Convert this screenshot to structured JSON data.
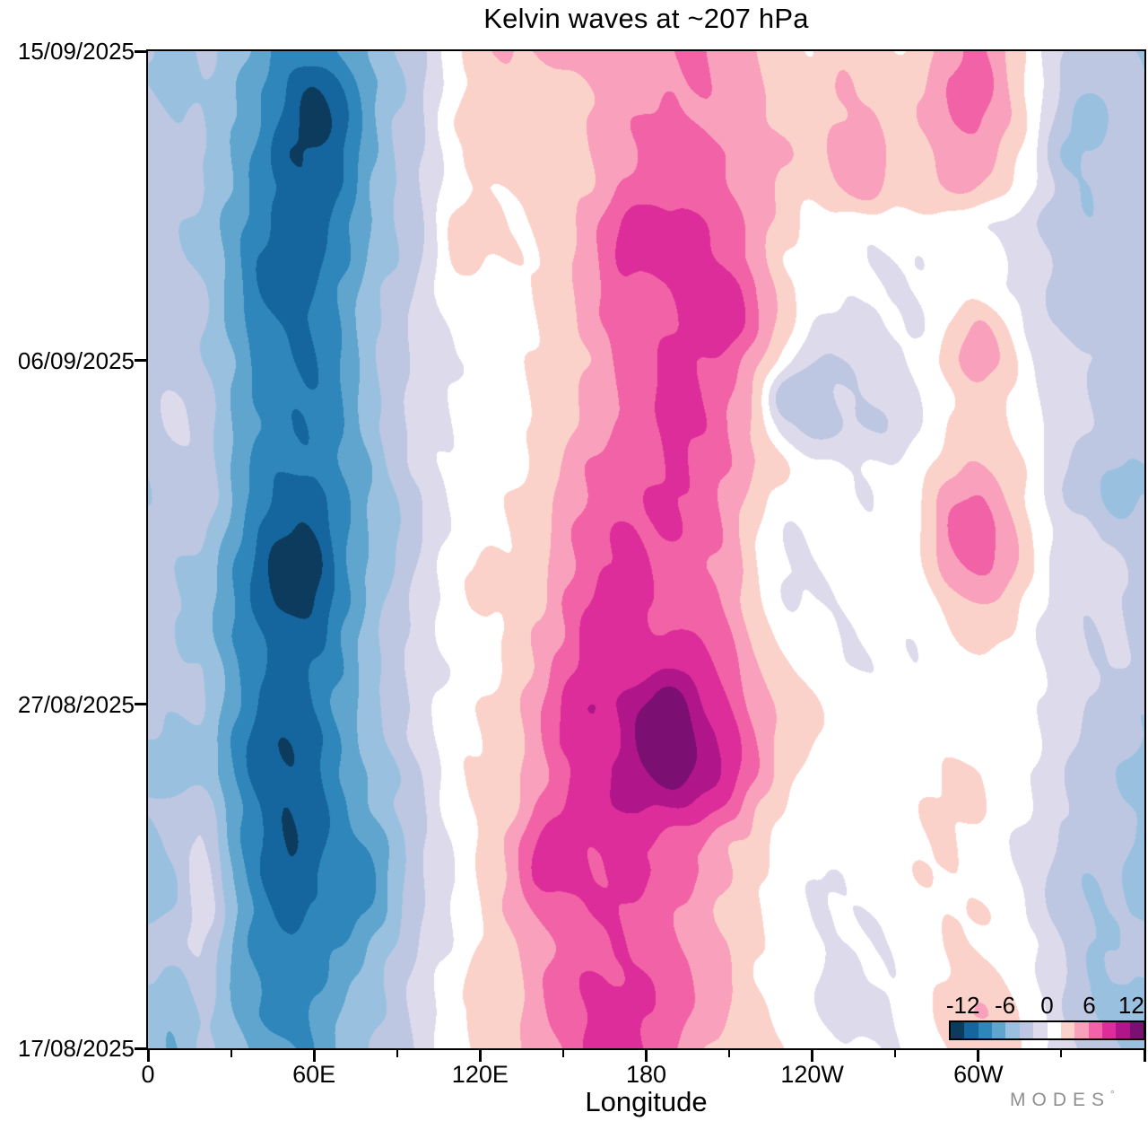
{
  "title": "Kelvin waves at ~207 hPa",
  "x_axis": {
    "label": "Longitude",
    "major_ticks": [
      {
        "lon": 0,
        "label": "0"
      },
      {
        "lon": 60,
        "label": "60E"
      },
      {
        "lon": 120,
        "label": "120E"
      },
      {
        "lon": 180,
        "label": "180"
      },
      {
        "lon": 240,
        "label": "120W"
      },
      {
        "lon": 300,
        "label": "60W"
      },
      {
        "lon": 360,
        "label": ""
      }
    ],
    "minor_ticks": [
      30,
      90,
      150,
      210,
      270,
      330
    ]
  },
  "y_axis": {
    "ticks": [
      {
        "day": 29,
        "label": "15/09/2025"
      },
      {
        "day": 20,
        "label": "06/09/2025"
      },
      {
        "day": 10,
        "label": "27/08/2025"
      },
      {
        "day": 0,
        "label": "17/08/2025"
      }
    ]
  },
  "colorbar": {
    "tick_labels": [
      "-12",
      "-6",
      "0",
      "6",
      "12"
    ],
    "tick_values": [
      -12,
      -6,
      0,
      6,
      12
    ],
    "level_min": -14,
    "level_max": 14,
    "level_step": 2,
    "colors": [
      "#0c3b5d",
      "#15669e",
      "#2e86ba",
      "#5fa5ce",
      "#99c1df",
      "#bec7e2",
      "#dcdaeb",
      "#ffffff",
      "#fbd2ca",
      "#f9a0bc",
      "#f162a6",
      "#dd2d9a",
      "#b0158a",
      "#7c0f72"
    ]
  },
  "logo": {
    "text": "MODES",
    "degree": "°"
  },
  "chart_data": {
    "type": "heatmap",
    "subtype": "filled_contour_hovmoller",
    "title": "Kelvin waves at ~207 hPa",
    "xlabel": "Longitude",
    "ylabel": "date",
    "x_name": "longitude_deg_0_to_360",
    "x_values": [
      0,
      10,
      20,
      30,
      40,
      50,
      60,
      70,
      80,
      90,
      100,
      110,
      120,
      130,
      140,
      150,
      160,
      170,
      180,
      190,
      200,
      210,
      220,
      230,
      240,
      250,
      260,
      270,
      280,
      290,
      300,
      310,
      320,
      330,
      340,
      350,
      360
    ],
    "y_name": "date",
    "rows_order": "bottom_to_top",
    "y_values": [
      "17/08/2025",
      "18/08/2025",
      "19/08/2025",
      "20/08/2025",
      "21/08/2025",
      "22/08/2025",
      "23/08/2025",
      "24/08/2025",
      "25/08/2025",
      "26/08/2025",
      "27/08/2025",
      "28/08/2025",
      "29/08/2025",
      "30/08/2025",
      "31/08/2025",
      "01/09/2025",
      "02/09/2025",
      "03/09/2025",
      "04/09/2025",
      "05/09/2025",
      "06/09/2025",
      "07/09/2025",
      "08/09/2025",
      "09/09/2025",
      "10/09/2025",
      "11/09/2025",
      "12/09/2025",
      "13/09/2025",
      "14/09/2025",
      "15/09/2025"
    ],
    "contour_levels": [
      -14,
      -12,
      -10,
      -8,
      -6,
      -4,
      -2,
      0,
      2,
      4,
      6,
      8,
      10,
      12,
      14
    ],
    "grid": [
      [
        -5,
        -6,
        -4,
        -5,
        -7,
        -8,
        -8,
        -6,
        -4,
        -3,
        -1,
        1,
        2,
        3,
        5,
        6,
        8,
        8,
        8,
        6,
        4,
        3,
        3,
        2,
        1,
        0,
        0,
        0,
        1,
        2,
        3,
        3,
        1,
        -1,
        -3,
        -4,
        -5
      ],
      [
        -5,
        -6,
        -4,
        -6,
        -8,
        -9,
        -8,
        -6,
        -5,
        -3,
        -1,
        1,
        2,
        3,
        5,
        7,
        8,
        9,
        8,
        7,
        5,
        4,
        3,
        1,
        0,
        -1,
        -1,
        0,
        1,
        3,
        4,
        3,
        1,
        -2,
        -4,
        -5,
        -5
      ],
      [
        -4,
        -5,
        -3,
        -6,
        -8,
        -10,
        -9,
        -7,
        -5,
        -3,
        -1,
        1,
        3,
        3,
        5,
        7,
        8,
        8,
        8,
        7,
        5,
        4,
        2,
        1,
        0,
        -1,
        0,
        0,
        1,
        2,
        3,
        2,
        0,
        -2,
        -4,
        -4,
        -4
      ],
      [
        -3,
        -3,
        -2,
        -6,
        -9,
        -10,
        -9,
        -8,
        -6,
        -4,
        -2,
        0,
        2,
        3,
        5,
        6,
        7,
        8,
        7,
        6,
        5,
        4,
        2,
        1,
        0,
        0,
        0,
        0,
        1,
        2,
        2,
        1,
        0,
        -2,
        -4,
        -4,
        -3
      ],
      [
        -5,
        -4,
        -1,
        -5,
        -9,
        -11,
        -10,
        -9,
        -8,
        -5,
        -2,
        0,
        2,
        4,
        6,
        7,
        8,
        8,
        7,
        6,
        5,
        3,
        2,
        1,
        0,
        0,
        0,
        0,
        1,
        2,
        2,
        1,
        -1,
        -3,
        -4,
        -4,
        -5
      ],
      [
        -6,
        -4,
        -1,
        -6,
        -10,
        -12,
        -10,
        -9,
        -9,
        -5,
        -2,
        0,
        2,
        4,
        8,
        9,
        8,
        8,
        8,
        7,
        6,
        4,
        2,
        1,
        0,
        0,
        1,
        1,
        2,
        2,
        1,
        0,
        -1,
        -3,
        -4,
        -4,
        -6
      ],
      [
        -5,
        -3,
        -2,
        -7,
        -10,
        -12,
        -11,
        -9,
        -8,
        -5,
        -2,
        0,
        2,
        4,
        8,
        9,
        8,
        8,
        8,
        7,
        6,
        4,
        3,
        1,
        1,
        1,
        1,
        1,
        2,
        2,
        1,
        0,
        -1,
        -2,
        -3,
        -3,
        -5
      ],
      [
        -4,
        -3,
        -3,
        -7,
        -10,
        -12,
        -11,
        -9,
        -6,
        -4,
        -2,
        1,
        2,
        3,
        6,
        8,
        9,
        10,
        10,
        10,
        9,
        7,
        4,
        2,
        1,
        1,
        1,
        1,
        2,
        2,
        2,
        1,
        0,
        -2,
        -3,
        -4,
        -4
      ],
      [
        -5,
        -6,
        -5,
        -8,
        -11,
        -12,
        -11,
        -8,
        -6,
        -4,
        -2,
        1,
        2,
        3,
        5,
        7,
        9,
        10,
        12,
        13,
        11,
        9,
        6,
        3,
        1,
        1,
        1,
        1,
        1,
        2,
        2,
        1,
        0,
        -2,
        -4,
        -4,
        -5
      ],
      [
        -4,
        -5,
        -5,
        -8,
        -11,
        -12,
        -11,
        -8,
        -5,
        -3,
        -1,
        1,
        2,
        3,
        5,
        8,
        9,
        10,
        13,
        13,
        11,
        9,
        6,
        3,
        2,
        1,
        1,
        1,
        1,
        1,
        1,
        1,
        0,
        -1,
        -3,
        -3,
        -4
      ],
      [
        -4,
        -4,
        -4,
        -7,
        -10,
        -11,
        -10,
        -7,
        -5,
        -3,
        -1,
        1,
        2,
        3,
        5,
        8,
        10,
        10,
        12,
        13,
        10,
        8,
        5,
        3,
        2,
        1,
        1,
        0,
        0,
        1,
        1,
        1,
        0,
        -1,
        -2,
        -3,
        -4
      ],
      [
        -3,
        -4,
        -4,
        -7,
        -10,
        -11,
        -10,
        -8,
        -5,
        -3,
        -1,
        0,
        1,
        2,
        4,
        7,
        9,
        9,
        9,
        10,
        9,
        7,
        4,
        2,
        1,
        0,
        0,
        0,
        0,
        1,
        1,
        0,
        0,
        -1,
        -2,
        -2,
        -3
      ],
      [
        -3,
        -4,
        -5,
        -8,
        -10,
        -11,
        -11,
        -8,
        -5,
        -3,
        -1,
        1,
        1,
        2,
        4,
        6,
        9,
        9,
        8,
        8,
        8,
        6,
        3,
        1,
        1,
        0,
        0,
        0,
        0,
        2,
        3,
        2,
        0,
        -1,
        -2,
        -2,
        -3
      ],
      [
        -3,
        -4,
        -5,
        -8,
        -11,
        -13,
        -12,
        -9,
        -6,
        -3,
        -1,
        1,
        2,
        2,
        3,
        6,
        8,
        8,
        8,
        7,
        7,
        5,
        2,
        0,
        0,
        0,
        0,
        0,
        1,
        3,
        4,
        3,
        1,
        -1,
        -2,
        -2,
        -3
      ],
      [
        -3,
        -4,
        -5,
        -8,
        -11,
        -14,
        -13,
        -9,
        -6,
        -4,
        -1,
        1,
        2,
        2,
        3,
        5,
        7,
        8,
        8,
        7,
        6,
        5,
        2,
        0,
        0,
        0,
        0,
        0,
        2,
        5,
        6,
        5,
        2,
        -1,
        -2,
        -2,
        -3
      ],
      [
        -3,
        -3,
        -4,
        -7,
        -10,
        -12,
        -12,
        -9,
        -6,
        -4,
        -2,
        0,
        1,
        2,
        3,
        5,
        7,
        8,
        8,
        8,
        7,
        5,
        2,
        0,
        0,
        0,
        0,
        1,
        2,
        6,
        7,
        5,
        2,
        -1,
        -2,
        -3,
        -3
      ],
      [
        -4,
        -3,
        -3,
        -6,
        -9,
        -11,
        -11,
        -9,
        -6,
        -4,
        -2,
        0,
        1,
        2,
        3,
        4,
        6,
        7,
        8,
        8,
        7,
        5,
        3,
        1,
        0,
        0,
        0,
        1,
        2,
        5,
        6,
        4,
        1,
        -2,
        -3,
        -5,
        -4
      ],
      [
        -4,
        -3,
        -3,
        -6,
        -9,
        -10,
        -10,
        -8,
        -6,
        -3,
        -1,
        0,
        1,
        1,
        2,
        4,
        6,
        7,
        7,
        8,
        7,
        6,
        4,
        2,
        0,
        0,
        0,
        0,
        1,
        3,
        4,
        3,
        1,
        -2,
        -3,
        -4,
        -4
      ],
      [
        -3,
        -2,
        -3,
        -6,
        -8,
        -10,
        -10,
        -8,
        -5,
        -3,
        -1,
        0,
        1,
        1,
        2,
        3,
        5,
        6,
        7,
        8,
        8,
        6,
        3,
        -1,
        -3,
        -2,
        -2,
        -2,
        0,
        2,
        3,
        2,
        0,
        -1,
        -2,
        -3,
        -3
      ],
      [
        -3,
        -2,
        -3,
        -6,
        -9,
        -10,
        -10,
        -8,
        -5,
        -3,
        -1,
        0,
        1,
        1,
        2,
        3,
        5,
        6,
        7,
        9,
        8,
        6,
        3,
        -4,
        -3,
        -2,
        -2,
        -2,
        0,
        2,
        3,
        2,
        0,
        -1,
        -2,
        -3,
        -3
      ],
      [
        -3,
        -3,
        -4,
        -6,
        -9,
        -10,
        -10,
        -8,
        -5,
        -3,
        -1,
        0,
        0,
        1,
        2,
        3,
        4,
        6,
        7,
        9,
        8,
        7,
        4,
        1,
        -2,
        -2,
        -2,
        -1,
        1,
        3,
        5,
        3,
        0,
        -1,
        -2,
        -3,
        -3
      ],
      [
        -3,
        -3,
        -4,
        -7,
        -9,
        -10,
        -10,
        -8,
        -5,
        -3,
        -1,
        0,
        1,
        1,
        2,
        3,
        5,
        6,
        7,
        8,
        9,
        9,
        6,
        3,
        0,
        -1,
        -1,
        0,
        0,
        2,
        4,
        2,
        -1,
        -2,
        -3,
        -3,
        -3
      ],
      [
        -3,
        -3,
        -4,
        -7,
        -10,
        -11,
        -10,
        -8,
        -5,
        -3,
        -1,
        1,
        1,
        1,
        2,
        3,
        5,
        7,
        7,
        8,
        9,
        9,
        6,
        3,
        1,
        0,
        0,
        0,
        0,
        1,
        1,
        0,
        -1,
        -3,
        -4,
        -3,
        -3
      ],
      [
        -3,
        -4,
        -5,
        -7,
        -10,
        -11,
        -11,
        -9,
        -6,
        -4,
        -2,
        2,
        2,
        2,
        2,
        3,
        5,
        8,
        9,
        9,
        8,
        7,
        5,
        2,
        1,
        0,
        0,
        0,
        0,
        1,
        1,
        0,
        -1,
        -3,
        -4,
        -3,
        -3
      ],
      [
        -3,
        -4,
        -5,
        -7,
        -9,
        -11,
        -11,
        -9,
        -6,
        -4,
        -2,
        2,
        3,
        2,
        2,
        3,
        5,
        8,
        9,
        8,
        8,
        7,
        5,
        3,
        1,
        1,
        1,
        1,
        1,
        1,
        0,
        0,
        -2,
        -4,
        -4,
        -3,
        -3
      ],
      [
        -3,
        -3,
        -4,
        -6,
        -9,
        -11,
        -12,
        -10,
        -6,
        -4,
        -2,
        1,
        2,
        2,
        2,
        3,
        4,
        6,
        7,
        7,
        7,
        6,
        5,
        3,
        2,
        4,
        5,
        3,
        3,
        4,
        4,
        2,
        0,
        -3,
        -4,
        -3,
        -3
      ],
      [
        -3,
        -3,
        -4,
        -6,
        -9,
        -12,
        -12,
        -10,
        -7,
        -4,
        -2,
        1,
        3,
        3,
        3,
        3,
        4,
        5,
        6,
        7,
        7,
        6,
        5,
        4,
        3,
        5,
        5,
        3,
        3,
        5,
        5,
        3,
        0,
        -4,
        -4,
        -3,
        -3
      ],
      [
        -3,
        -4,
        -4,
        -6,
        -8,
        -11,
        -13,
        -11,
        -7,
        -4,
        -2,
        2,
        3,
        3,
        3,
        3,
        4,
        5,
        6,
        6,
        6,
        5,
        4,
        3,
        3,
        4,
        4,
        3,
        4,
        6,
        6,
        4,
        1,
        -3,
        -5,
        -4,
        -3
      ],
      [
        -4,
        -5,
        -4,
        -6,
        -8,
        -10,
        -12,
        -10,
        -7,
        -5,
        -2,
        1,
        2,
        3,
        3,
        3,
        4,
        4,
        5,
        6,
        6,
        5,
        4,
        3,
        3,
        4,
        3,
        3,
        4,
        6,
        7,
        4,
        1,
        -2,
        -4,
        -4,
        -4
      ],
      [
        -4,
        -5,
        -4,
        -5,
        -7,
        -9,
        -9,
        -8,
        -6,
        -4,
        -2,
        1,
        3,
        4,
        4,
        5,
        5,
        5,
        5,
        6,
        6,
        5,
        4,
        3,
        2,
        3,
        3,
        2,
        3,
        5,
        6,
        4,
        1,
        -2,
        -3,
        -4,
        -4
      ]
    ]
  }
}
